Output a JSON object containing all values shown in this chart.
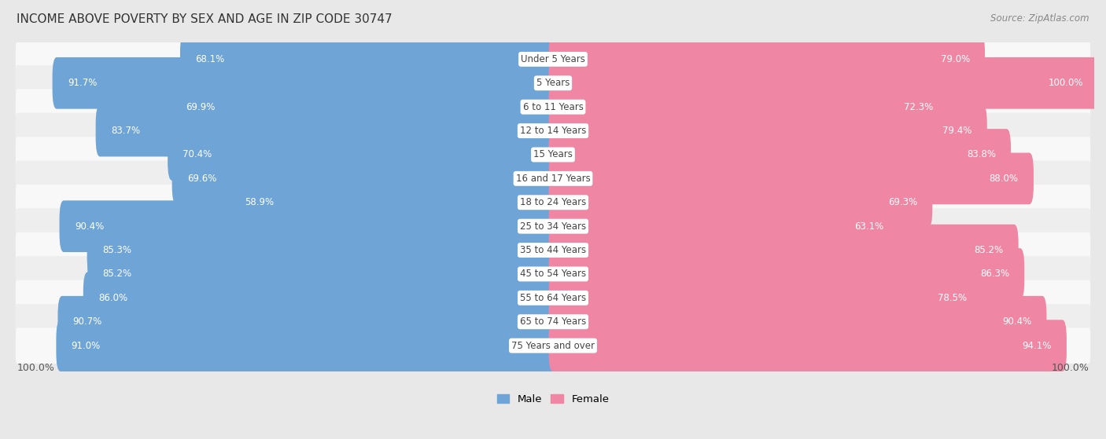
{
  "title": "INCOME ABOVE POVERTY BY SEX AND AGE IN ZIP CODE 30747",
  "source": "Source: ZipAtlas.com",
  "categories": [
    "Under 5 Years",
    "5 Years",
    "6 to 11 Years",
    "12 to 14 Years",
    "15 Years",
    "16 and 17 Years",
    "18 to 24 Years",
    "25 to 34 Years",
    "35 to 44 Years",
    "45 to 54 Years",
    "55 to 64 Years",
    "65 to 74 Years",
    "75 Years and over"
  ],
  "male_values": [
    68.1,
    91.7,
    69.9,
    83.7,
    70.4,
    69.6,
    58.9,
    90.4,
    85.3,
    85.2,
    86.0,
    90.7,
    91.0
  ],
  "female_values": [
    79.0,
    100.0,
    72.3,
    79.4,
    83.8,
    88.0,
    69.3,
    63.1,
    85.2,
    86.3,
    78.5,
    90.4,
    94.1
  ],
  "male_color_light": "#aec9e8",
  "male_color_dark": "#6fa4d6",
  "female_color_light": "#f5b8cb",
  "female_color_dark": "#ef87a4",
  "background_color": "#e8e8e8",
  "row_bg_color": "#f2f2f2",
  "row_bg_color2": "#e0e0e0",
  "title_fontsize": 11,
  "source_fontsize": 8.5,
  "label_fontsize": 8.5,
  "category_fontsize": 8.5,
  "legend_fontsize": 9.5
}
